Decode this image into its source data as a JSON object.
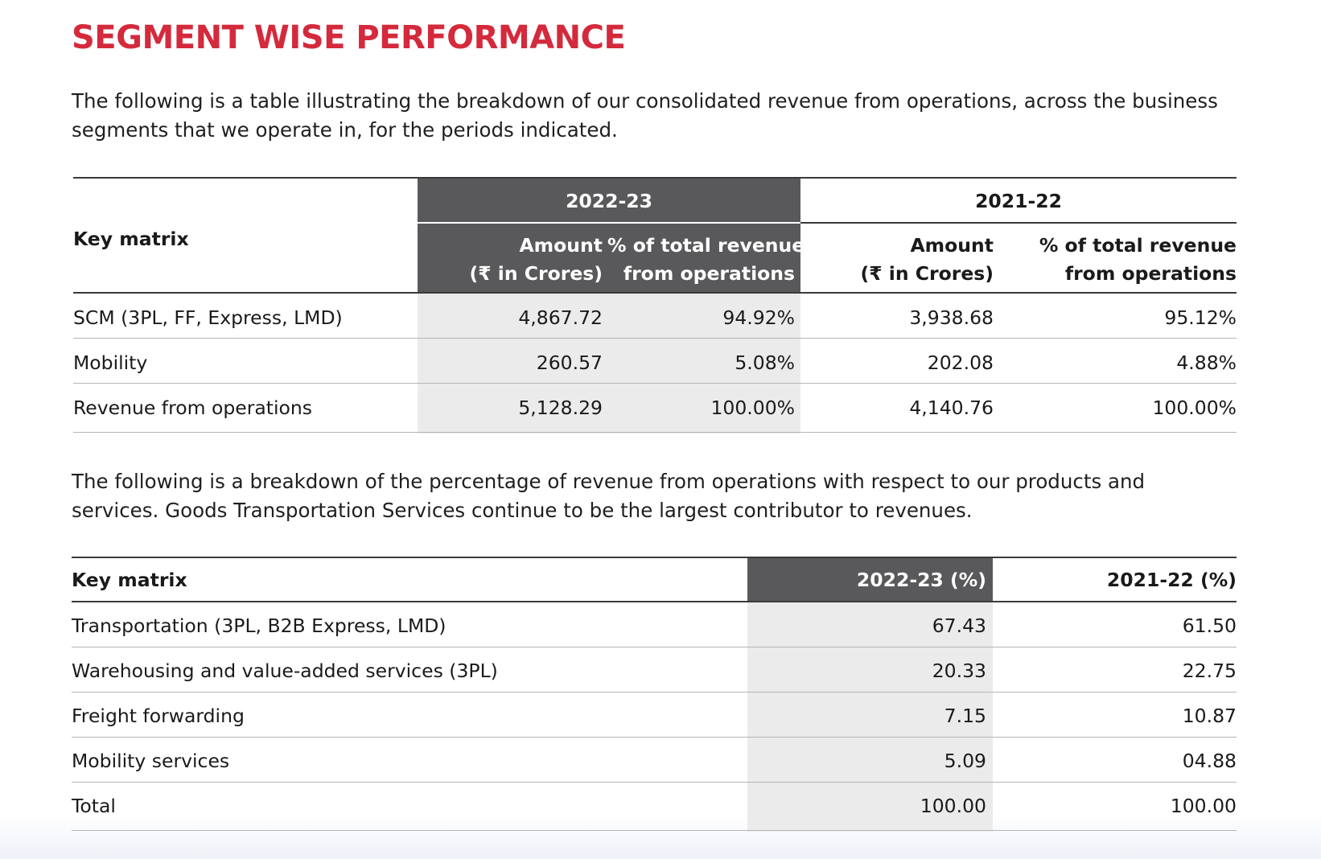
{
  "title": "SEGMENT WISE PERFORMANCE",
  "intro1": "The following is a table illustrating the breakdown of our consolidated revenue from operations, across the business segments that we operate in, for the periods indicated.",
  "table1": {
    "key_header": "Key matrix",
    "period_a": "2022-23",
    "period_b": "2021-22",
    "amount_line1": "Amount",
    "amount_line2": "(₹ in Crores)",
    "pct_line1": "% of total revenue",
    "pct_line2": "from operations",
    "rows": [
      {
        "label": "SCM (3PL, FF, Express, LMD)",
        "a_amount": "4,867.72",
        "a_pct": "94.92%",
        "b_amount": "3,938.68",
        "b_pct": "95.12%"
      },
      {
        "label": "Mobility",
        "a_amount": "260.57",
        "a_pct": "5.08%",
        "b_amount": "202.08",
        "b_pct": "4.88%"
      },
      {
        "label": "Revenue from operations",
        "a_amount": "5,128.29",
        "a_pct": "100.00%",
        "b_amount": "4,140.76",
        "b_pct": "100.00%"
      }
    ]
  },
  "intro2": "The following is a breakdown of the percentage of revenue from operations with respect to our products and services. Goods Transportation Services continue to be the largest contributor to revenues.",
  "table2": {
    "key_header": "Key matrix",
    "col_a": "2022-23 (%)",
    "col_b": "2021-22 (%)",
    "rows": [
      {
        "label": "Transportation (3PL, B2B Express, LMD)",
        "a": "67.43",
        "b": "61.50"
      },
      {
        "label": "Warehousing and value-added services (3PL)",
        "a": "20.33",
        "b": "22.75"
      },
      {
        "label": "Freight forwarding",
        "a": "7.15",
        "b": "10.87"
      },
      {
        "label": "Mobility services",
        "a": "5.09",
        "b": "04.88"
      },
      {
        "label": "Total",
        "a": "100.00",
        "b": "100.00"
      }
    ]
  },
  "colors": {
    "title_red": "#d42a3c",
    "header_band": "#59595b",
    "shade": "#ebebeb"
  }
}
